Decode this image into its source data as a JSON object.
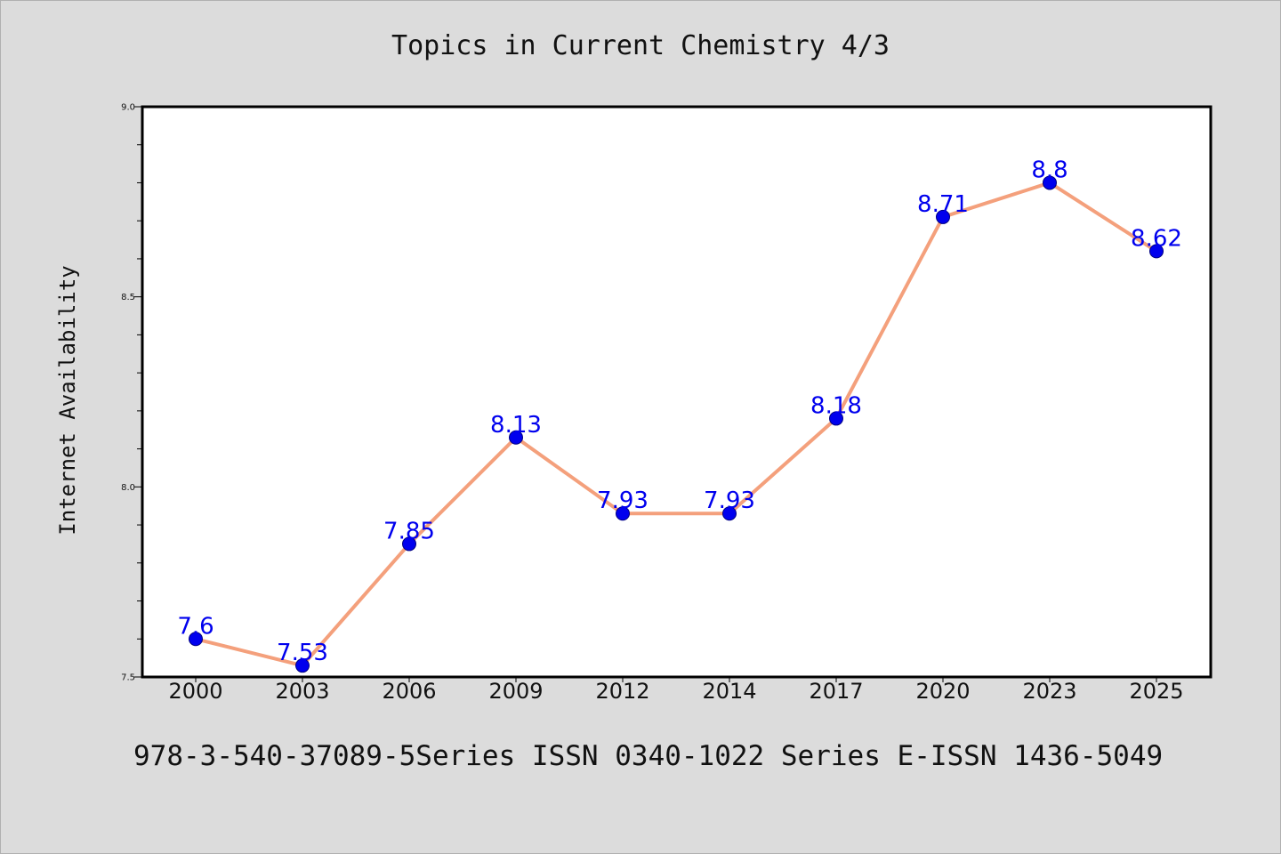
{
  "title": "Topics in Current Chemistry 4/3",
  "footer": "978-3-540-37089-5Series ISSN 0340-1022 Series E-ISSN 1436-5049",
  "colors": {
    "background": "#dcdcdc",
    "plot_background": "#ffffff",
    "line": "#f4a07c",
    "marker": "#0000ee",
    "marker_edge": "#000080",
    "data_label": "#0000ee"
  },
  "chart_data": {
    "type": "line",
    "title": "Topics in Current Chemistry 4/3",
    "xlabel": "",
    "ylabel": "Internet Availability",
    "categories": [
      "2000",
      "2003",
      "2006",
      "2009",
      "2012",
      "2014",
      "2017",
      "2020",
      "2023",
      "2025"
    ],
    "series": [
      {
        "values": [
          7.6,
          7.53,
          7.85,
          8.13,
          7.93,
          7.93,
          8.18,
          8.71,
          8.8,
          8.62
        ],
        "data_labels": [
          "7.6",
          "7.53",
          "7.85",
          "8.13",
          "7.93",
          "7.93",
          "8.18",
          "8.71",
          "8.8",
          "8.62"
        ]
      }
    ],
    "ylim": [
      7.5,
      9.0
    ],
    "y_ticks": [
      "7.5",
      "8.0",
      "8.5",
      "9.0"
    ],
    "y_minor_step": 0.1,
    "grid": false,
    "legend": "none"
  }
}
